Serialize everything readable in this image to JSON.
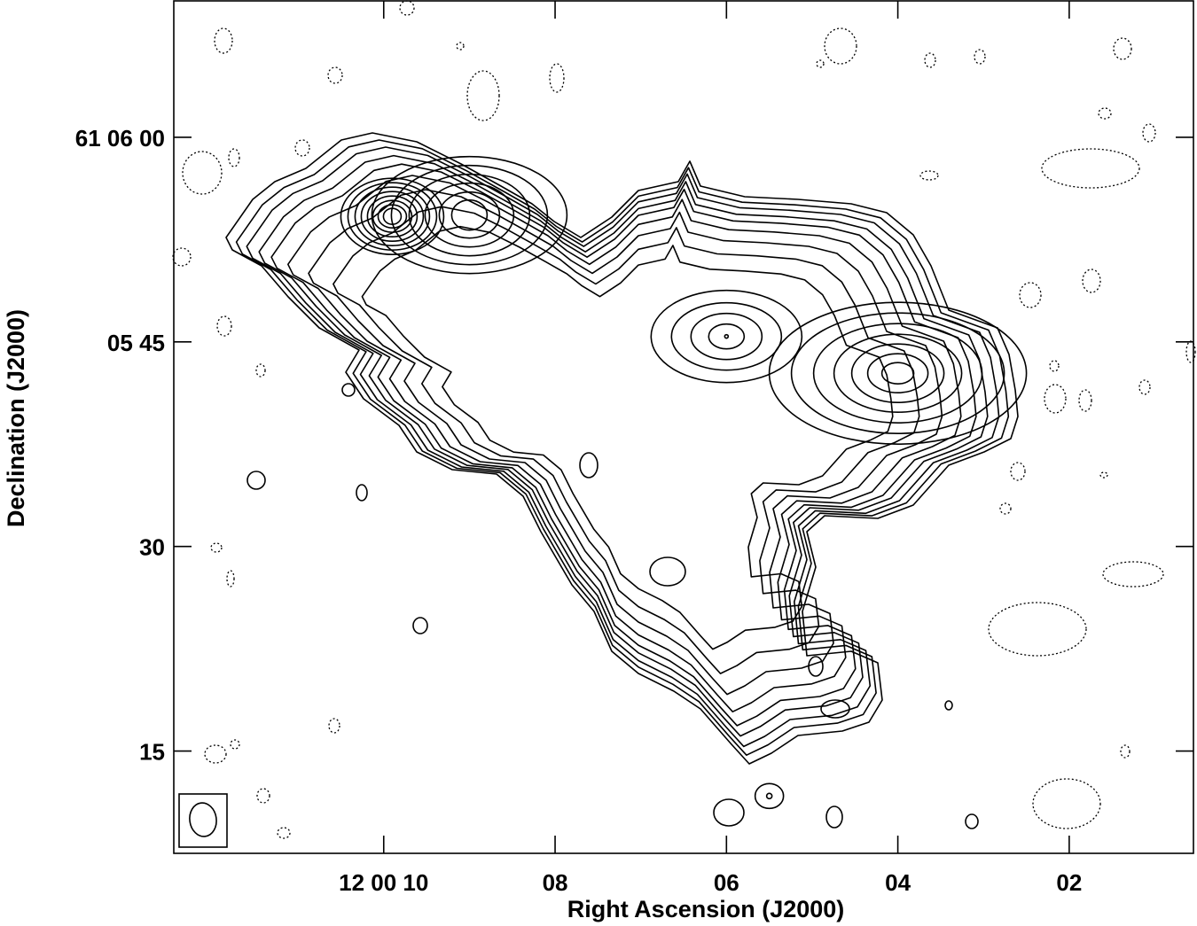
{
  "chart_data": {
    "type": "contour",
    "xlabel": "Right Ascension (J2000)",
    "ylabel": "Declination (J2000)",
    "x_ticks": [
      {
        "label": "12 00 10",
        "ra_sec": 10
      },
      {
        "label": "08",
        "ra_sec": 8
      },
      {
        "label": "06",
        "ra_sec": 6
      },
      {
        "label": "04",
        "ra_sec": 4
      },
      {
        "label": "02",
        "ra_sec": 2
      }
    ],
    "y_ticks": [
      {
        "label": "61 06 00",
        "dec_arcsec": 360
      },
      {
        "label": "05 45",
        "dec_arcsec": 345
      },
      {
        "label": "30",
        "dec_arcsec": 330
      },
      {
        "label": "15",
        "dec_arcsec": 315
      }
    ],
    "x_range_ra_sec": [
      12.45,
      0.55
    ],
    "y_range_dec_arcsec": [
      307.5,
      370
    ],
    "x_direction": "decreasing to the right",
    "positive_contours": "solid",
    "negative_contours": "dotted",
    "beam_shown": true,
    "beam_position": "bottom-left",
    "peaks": [
      {
        "ra_sec": 9.9,
        "dec_arcsec": 354.2
      },
      {
        "ra_sec": 9.0,
        "dec_arcsec": 354.3
      },
      {
        "ra_sec": 6.0,
        "dec_arcsec": 345.4
      },
      {
        "ra_sec": 4.0,
        "dec_arcsec": 342.7
      },
      {
        "ra_sec": 5.5,
        "dec_arcsec": 311.7
      }
    ]
  }
}
